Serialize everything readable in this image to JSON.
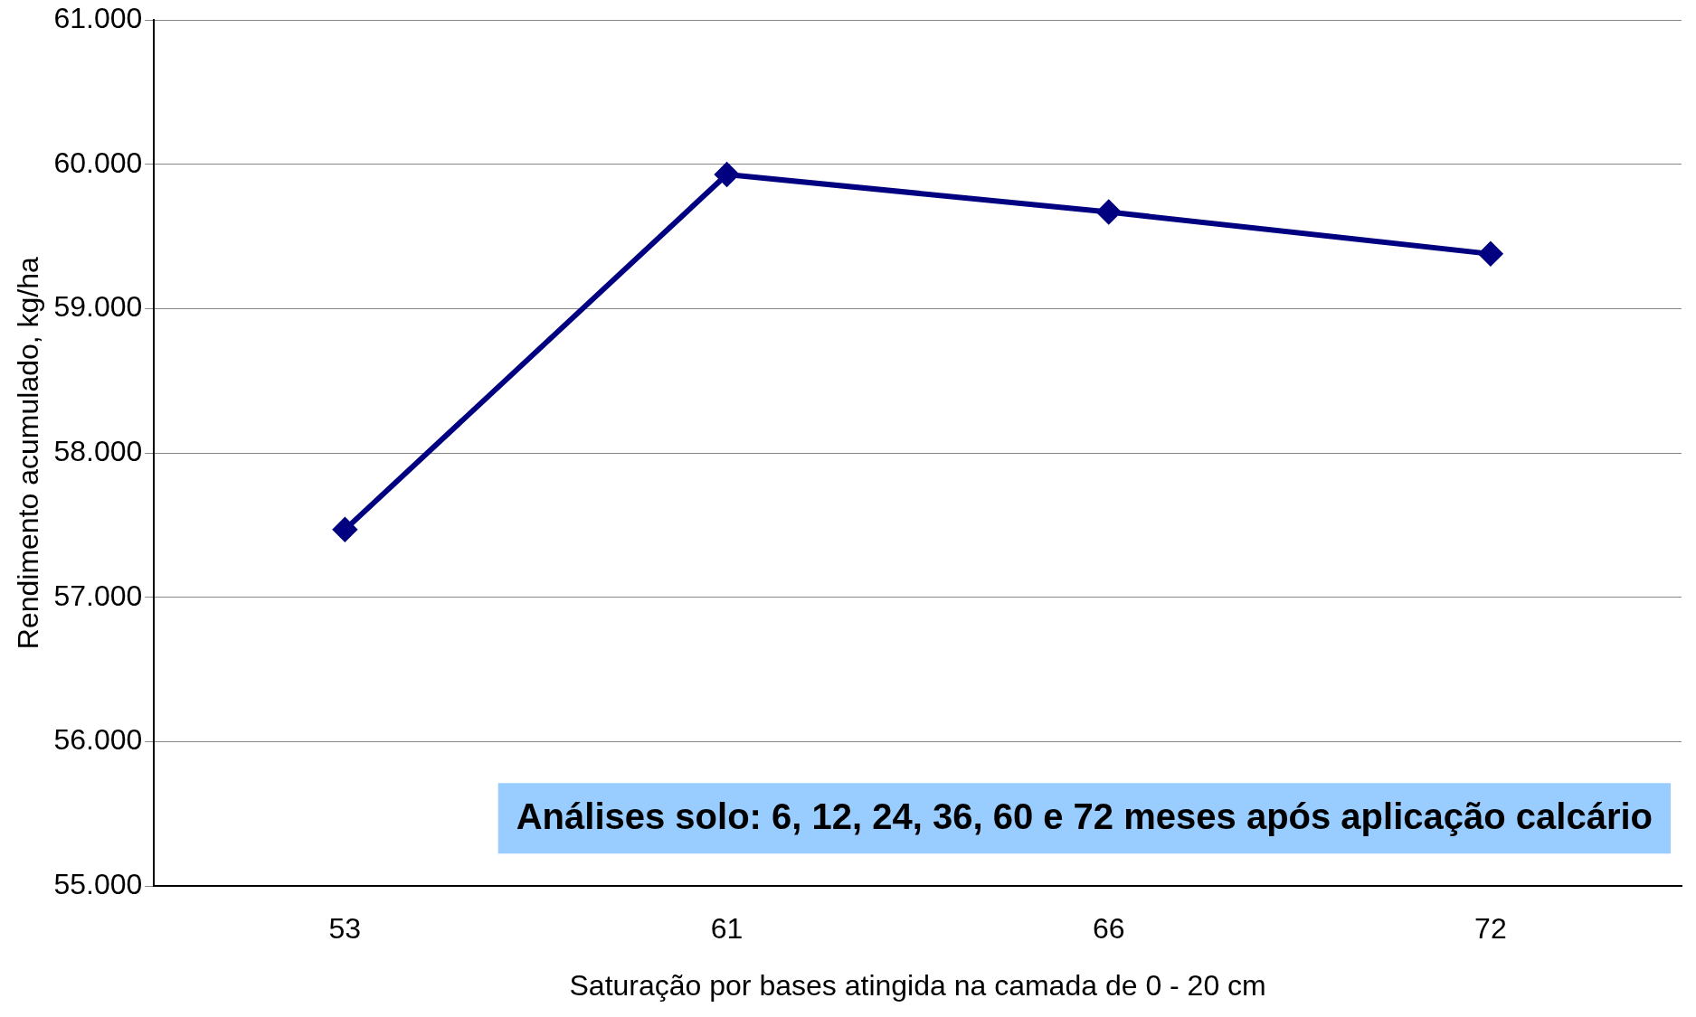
{
  "chart_data": {
    "type": "line",
    "xlabel": "Saturação por bases atingida na camada de 0 - 20 cm",
    "ylabel": "Rendimento acumulado, kg/ha",
    "categories": [
      "53",
      "61",
      "66",
      "72"
    ],
    "series": [
      {
        "color": "#000080",
        "values": [
          57470,
          59930,
          59670,
          59380
        ]
      }
    ],
    "ylim": [
      55000,
      61000
    ],
    "yticks": [
      {
        "value": 55000,
        "label": "55.000"
      },
      {
        "value": 56000,
        "label": "56.000"
      },
      {
        "value": 57000,
        "label": "57.000"
      },
      {
        "value": 58000,
        "label": "58.000"
      },
      {
        "value": 59000,
        "label": "59.000"
      },
      {
        "value": 60000,
        "label": "60.000"
      },
      {
        "value": 61000,
        "label": "61.000"
      }
    ],
    "grid": "y",
    "legend": false,
    "marker": "diamond",
    "line_style": "solid",
    "annotations": [
      "Análises solo: 6, 12, 24, 36, 60 e 72 meses após aplicação calcário"
    ]
  }
}
